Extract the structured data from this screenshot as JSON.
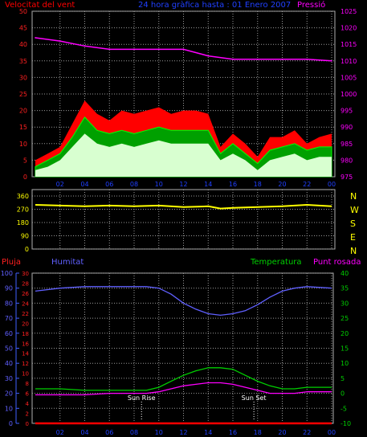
{
  "chart_data": [
    {
      "type": "line",
      "title": "24 hora gràfica hasta : 01 Enero 2007",
      "left_axis_label": "Velocitat del vent",
      "right_axis_label": "Pressió",
      "x_ticks": [
        "02",
        "04",
        "06",
        "08",
        "10",
        "12",
        "14",
        "16",
        "18",
        "20",
        "22",
        "00"
      ],
      "y_left": {
        "min": 0,
        "max": 50,
        "ticks": [
          0,
          5,
          10,
          15,
          20,
          25,
          30,
          35,
          40,
          45,
          50
        ]
      },
      "y_right": {
        "min": 975,
        "max": 1025,
        "ticks": [
          975,
          980,
          985,
          990,
          995,
          1000,
          1005,
          1010,
          1015,
          1020,
          1025
        ]
      },
      "grid": true,
      "series": [
        {
          "name": "Pressió",
          "color": "#ff00ff",
          "axis": "right",
          "x": [
            0,
            2,
            4,
            6,
            8,
            10,
            12,
            14,
            16,
            18,
            20,
            22,
            24
          ],
          "values": [
            1017,
            1016,
            1014.5,
            1013.5,
            1013.5,
            1013.5,
            1013.5,
            1011.5,
            1010.5,
            1010.5,
            1010.5,
            1010.5,
            1010
          ]
        },
        {
          "color": "#ff0000",
          "axis": "left",
          "x": [
            0,
            1,
            2,
            3,
            4,
            5,
            6,
            7,
            8,
            9,
            10,
            11,
            12,
            13,
            14,
            15,
            16,
            17,
            18,
            19,
            20,
            21,
            22,
            23,
            24
          ],
          "values": [
            5,
            7,
            9,
            16,
            23,
            19,
            17,
            20,
            19,
            20,
            21,
            19,
            20,
            20,
            19,
            9,
            13,
            10,
            6,
            12,
            12,
            14,
            10,
            12,
            13
          ]
        },
        {
          "color": "#00d000",
          "axis": "left",
          "x": [
            0,
            1,
            2,
            3,
            4,
            5,
            6,
            7,
            8,
            9,
            10,
            11,
            12,
            13,
            14,
            15,
            16,
            17,
            18,
            19,
            20,
            21,
            22,
            23,
            24
          ],
          "values": [
            3,
            5,
            7,
            12,
            18,
            14,
            13,
            14,
            13,
            14,
            15,
            14,
            14,
            14,
            14,
            7,
            10,
            7,
            4,
            8,
            9,
            10,
            8,
            9,
            9
          ]
        },
        {
          "color": "#d8ffd0",
          "axis": "left",
          "x": [
            0,
            1,
            2,
            3,
            4,
            5,
            6,
            7,
            8,
            9,
            10,
            11,
            12,
            13,
            14,
            15,
            16,
            17,
            18,
            19,
            20,
            21,
            22,
            23,
            24
          ],
          "values": [
            2,
            3,
            5,
            9,
            13,
            10,
            9,
            10,
            9,
            10,
            11,
            10,
            10,
            10,
            10,
            5,
            7,
            5,
            2,
            5,
            6,
            7,
            5,
            6,
            6
          ]
        }
      ]
    },
    {
      "type": "line",
      "x_ticks": [
        "02",
        "04",
        "06",
        "08",
        "10",
        "12",
        "14",
        "16",
        "18",
        "20",
        "22",
        "00"
      ],
      "y_left": {
        "min": 0,
        "max": 360,
        "ticks": [
          0,
          90,
          180,
          270,
          360
        ]
      },
      "right_labels": [
        "N",
        "W",
        "S",
        "E",
        "N"
      ],
      "grid": true,
      "series": [
        {
          "color": "#ffff00",
          "x": [
            0,
            2,
            4,
            6,
            8,
            10,
            12,
            14,
            15,
            16,
            18,
            20,
            22,
            24
          ],
          "values": [
            300,
            295,
            290,
            295,
            290,
            295,
            285,
            290,
            275,
            280,
            285,
            290,
            300,
            290
          ]
        }
      ]
    },
    {
      "type": "line",
      "left_axis_label": "Pluja",
      "labels": {
        "humidity": "Humitat",
        "temperature": "Temperatura",
        "dewpoint": "Punt rosada"
      },
      "x_ticks": [
        "02",
        "04",
        "06",
        "08",
        "10",
        "12",
        "14",
        "16",
        "18",
        "20",
        "22",
        "00"
      ],
      "y_rain": {
        "min": 0,
        "max": 30,
        "ticks": [
          0,
          2,
          4,
          6,
          8,
          10,
          12,
          14,
          16,
          18,
          20,
          22,
          24,
          26,
          28,
          30
        ]
      },
      "y_humidity": {
        "min": 0,
        "max": 100,
        "ticks": [
          0,
          10,
          20,
          30,
          40,
          50,
          60,
          70,
          80,
          90,
          100
        ]
      },
      "y_temp": {
        "min": -10,
        "max": 40,
        "ticks": [
          -10,
          -5,
          0,
          5,
          10,
          15,
          20,
          25,
          30,
          35,
          40
        ]
      },
      "annotations": [
        {
          "label": "Sun Rise",
          "x": 8.6
        },
        {
          "label": "Sun Set",
          "x": 17.7
        }
      ],
      "grid": true,
      "series": [
        {
          "color": "#6060ff",
          "axis": "humidity",
          "x": [
            0,
            2,
            4,
            6,
            8,
            9,
            10,
            11,
            12,
            13,
            14,
            15,
            16,
            17,
            18,
            19,
            20,
            21,
            22,
            24
          ],
          "values": [
            88,
            90,
            91,
            91,
            91,
            91,
            90,
            86,
            80,
            76,
            73,
            72,
            73,
            75,
            79,
            84,
            88,
            90,
            91,
            90
          ]
        },
        {
          "color": "#00d000",
          "axis": "temp",
          "x": [
            0,
            2,
            4,
            6,
            8,
            9,
            10,
            11,
            12,
            13,
            14,
            15,
            16,
            17,
            18,
            19,
            20,
            21,
            22,
            24
          ],
          "values": [
            1.5,
            1.5,
            1,
            1,
            1,
            1,
            2,
            4,
            6,
            7.5,
            8.5,
            8.5,
            8,
            6,
            4,
            2.5,
            1.5,
            1.5,
            2,
            2
          ]
        },
        {
          "color": "#ff00ff",
          "axis": "temp",
          "x": [
            0,
            2,
            4,
            6,
            8,
            9,
            10,
            11,
            12,
            13,
            14,
            15,
            16,
            17,
            18,
            19,
            20,
            21,
            22,
            24
          ],
          "values": [
            -0.5,
            -0.5,
            -0.5,
            0,
            0,
            0,
            0.5,
            1.5,
            2.5,
            3,
            3.5,
            3.5,
            3,
            2,
            1,
            0,
            0,
            0,
            0.5,
            0.5
          ]
        },
        {
          "color": "#ff0000",
          "axis": "rain",
          "x": [
            0,
            24
          ],
          "values": [
            0,
            0
          ]
        }
      ]
    }
  ]
}
